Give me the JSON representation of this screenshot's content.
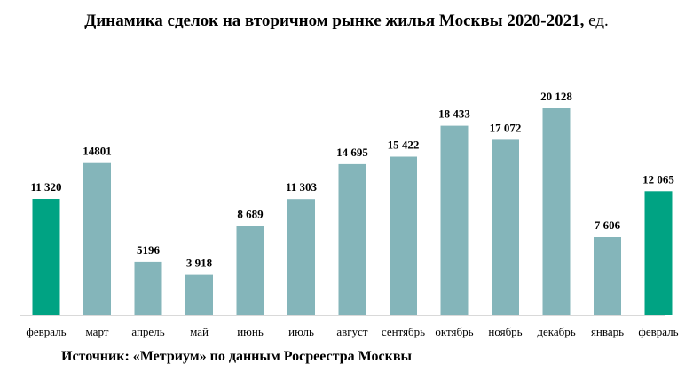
{
  "title": {
    "main": "Динамика сделок на вторичном рынке жилья Москвы 2020-2021, ",
    "unit": "ед."
  },
  "source": "Источник: «Метриум» по данным Росреестра Москвы",
  "colors": {
    "bar_default": "#84b5ba",
    "bar_highlight": "#00a383",
    "axis": "#d9d9d9",
    "text": "#000000"
  },
  "chart_data": {
    "type": "bar",
    "title": "Динамика сделок на вторичном рынке жилья Москвы 2020-2021, ед.",
    "xlabel": "",
    "ylabel": "",
    "grid": false,
    "legend": "none",
    "categories": [
      "февраль",
      "март",
      "апрель",
      "май",
      "июнь",
      "июль",
      "август",
      "сентябрь",
      "октябрь",
      "ноябрь",
      "декабрь",
      "январь",
      "февраль"
    ],
    "values": [
      11320,
      14801,
      5196,
      3918,
      8689,
      11303,
      14695,
      15422,
      18433,
      17072,
      20128,
      7606,
      12065
    ],
    "data_labels": [
      "11 320",
      "14801",
      "5196",
      "3 918",
      "8 689",
      "11 303",
      "14 695",
      "15 422",
      "18 433",
      "17 072",
      "20 128",
      "7 606",
      "12 065"
    ],
    "highlighted": [
      0,
      12
    ],
    "ylim": [
      0,
      20128
    ]
  }
}
